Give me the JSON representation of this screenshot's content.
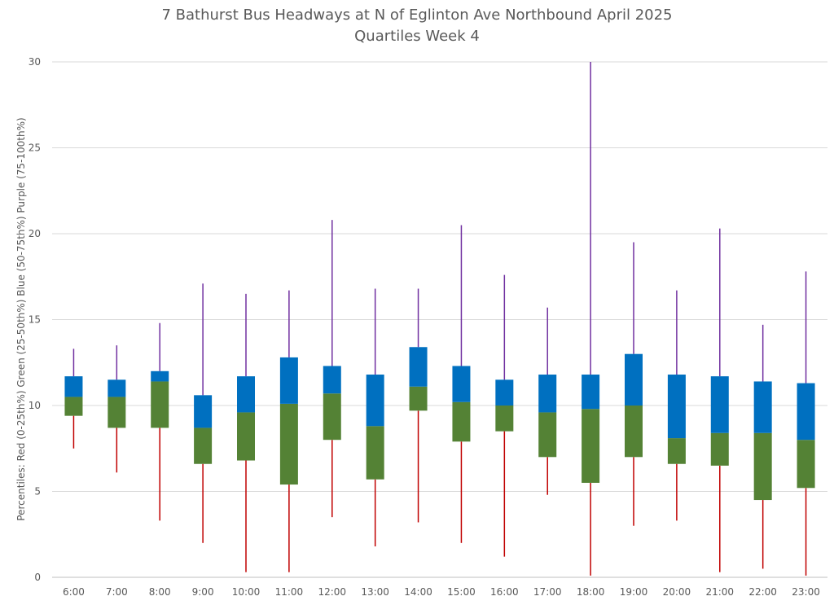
{
  "chart_data": {
    "type": "box",
    "title": "7 Bathurst Bus Headways at N of Eglinton Ave Northbound April 2025",
    "subtitle": "Quartiles Week 4",
    "ylabel": "Percentiles:  Red (0-25th%)  Green (25-50th%)  Blue (50-75th%)  Purple (75-100th%)",
    "xlabel": "",
    "ylim": [
      0,
      30
    ],
    "yticks": [
      0,
      5,
      10,
      15,
      20,
      25,
      30
    ],
    "grid": true,
    "categories": [
      "6:00",
      "7:00",
      "8:00",
      "9:00",
      "10:00",
      "11:00",
      "12:00",
      "13:00",
      "14:00",
      "15:00",
      "16:00",
      "17:00",
      "18:00",
      "19:00",
      "20:00",
      "21:00",
      "22:00",
      "23:00"
    ],
    "series": [
      {
        "name": "Red (0-25th%)",
        "values": [
          7.5,
          6.1,
          3.3,
          2.0,
          0.3,
          0.3,
          3.5,
          1.8,
          3.2,
          2.0,
          1.2,
          4.8,
          0.1,
          3.0,
          3.3,
          0.3,
          0.5,
          0.1
        ]
      },
      {
        "name": "Green (25-50th%)",
        "values": [
          9.4,
          8.7,
          8.7,
          6.6,
          6.8,
          5.4,
          8.0,
          5.7,
          9.7,
          7.9,
          8.5,
          7.0,
          5.5,
          7.0,
          6.6,
          6.5,
          4.5,
          5.2
        ]
      },
      {
        "name": "Blue (50-75th%)",
        "values": [
          10.5,
          10.5,
          11.4,
          8.7,
          9.6,
          10.1,
          10.7,
          8.8,
          11.1,
          10.2,
          10.0,
          9.6,
          9.8,
          10.0,
          8.1,
          8.4,
          8.4,
          8.0
        ]
      },
      {
        "name": "Purple (75-100th%)",
        "values": [
          11.7,
          11.5,
          12.0,
          10.6,
          11.7,
          12.8,
          12.3,
          11.8,
          13.4,
          12.3,
          11.5,
          11.8,
          11.8,
          13.0,
          11.8,
          11.7,
          11.4,
          11.3
        ]
      },
      {
        "name": "Max",
        "values": [
          13.3,
          13.5,
          14.8,
          17.1,
          16.5,
          16.7,
          20.8,
          16.8,
          16.8,
          20.5,
          17.6,
          15.7,
          30.0,
          19.5,
          16.7,
          20.3,
          14.7,
          17.8
        ]
      }
    ],
    "colors": {
      "red": "#c00000",
      "green": "#548235",
      "blue": "#0070c0",
      "purple": "#7030a0",
      "grid": "#d9d9d9",
      "axis": "#bfbfbf"
    }
  }
}
